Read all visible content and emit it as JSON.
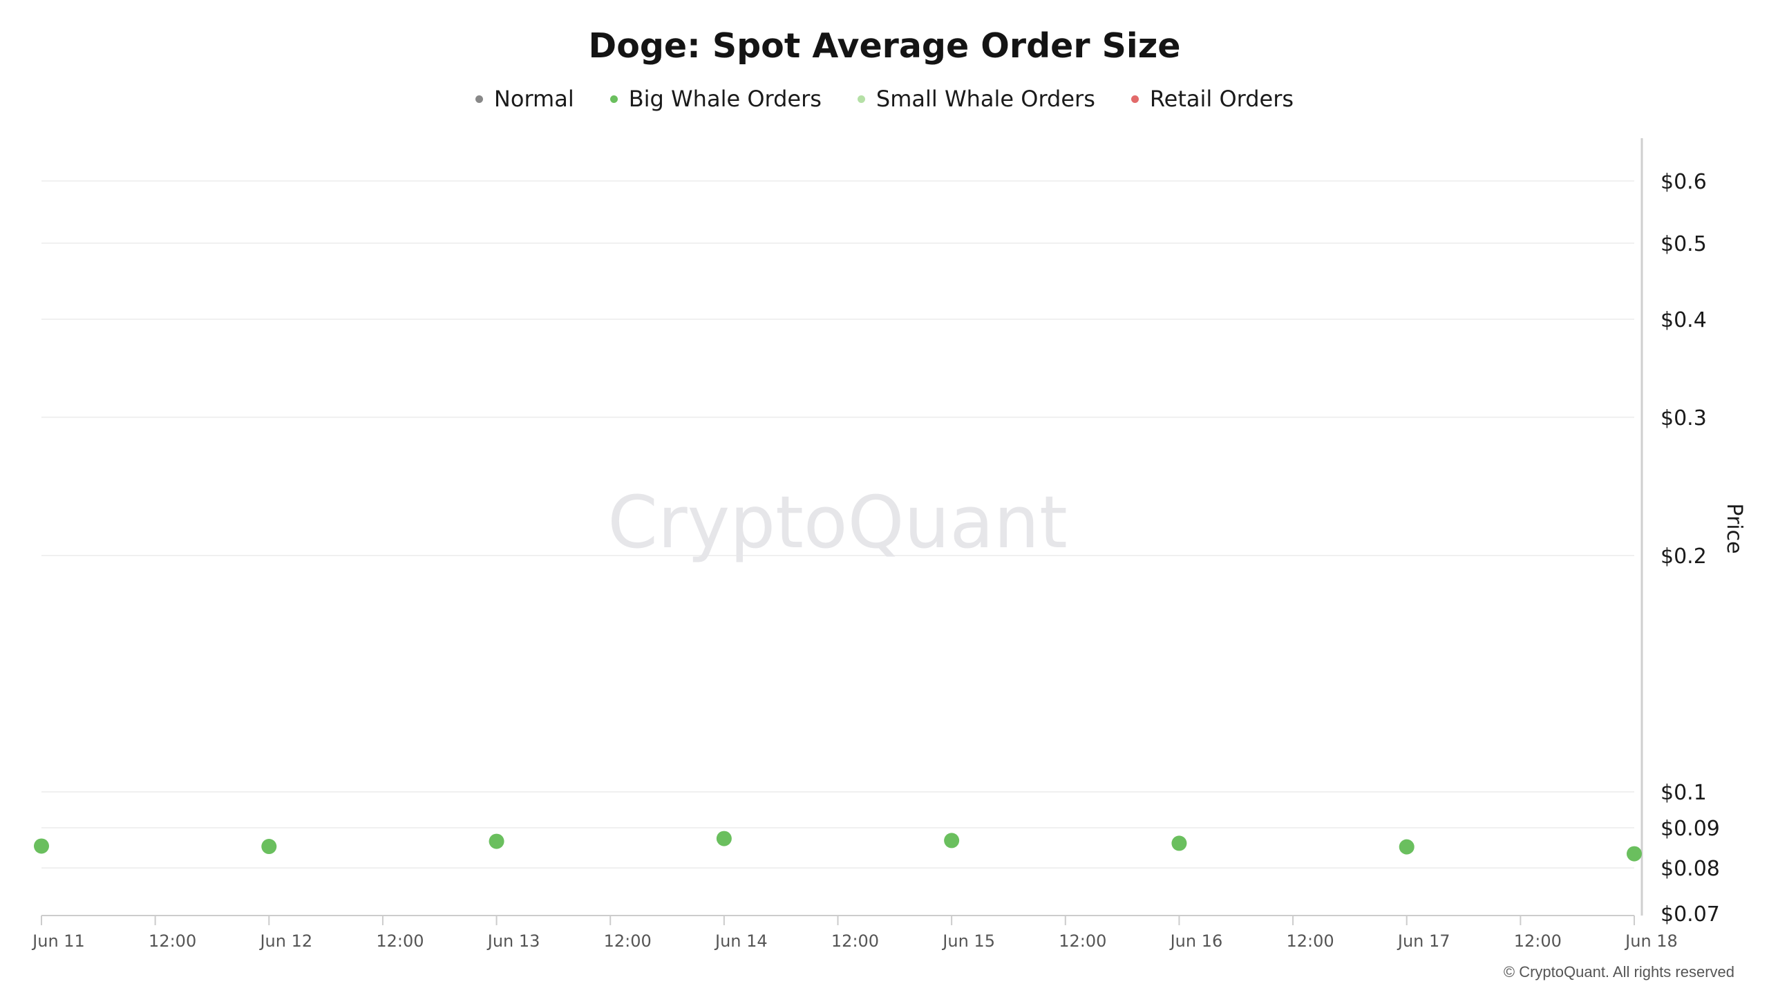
{
  "watermark": "CryptoQuant",
  "copyright": "© CryptoQuant. All rights reserved",
  "colors": {
    "normal": "#888888",
    "big_whale": "#6abf5e",
    "small_whale": "#b5e0a6",
    "retail": "#e26a6a"
  },
  "chart_data": {
    "type": "scatter",
    "title": "Doge: Spot Average Order Size",
    "legend": [
      {
        "name": "Normal",
        "color": "#888888"
      },
      {
        "name": "Big Whale Orders",
        "color": "#6abf5e"
      },
      {
        "name": "Small Whale Orders",
        "color": "#b5e0a6"
      },
      {
        "name": "Retail Orders",
        "color": "#e26a6a"
      }
    ],
    "legend_position": "top-center",
    "ylabel": "Price",
    "y_axis_position": "right",
    "y_scale": "log",
    "ylim": [
      0.07,
      0.65
    ],
    "y_ticks": [
      0.07,
      0.08,
      0.09,
      0.1,
      0.2,
      0.3,
      0.4,
      0.5,
      0.6
    ],
    "y_tick_labels": [
      "$0.07",
      "$0.08",
      "$0.09",
      "$0.1",
      "$0.2",
      "$0.3",
      "$0.4",
      "$0.5",
      "$0.6"
    ],
    "xlim": [
      "2023-06-11 00:00",
      "2023-06-18 00:00"
    ],
    "x_tick_labels": [
      "Jun 11",
      "12:00",
      "Jun 12",
      "12:00",
      "Jun 13",
      "12:00",
      "Jun 14",
      "12:00",
      "Jun 15",
      "12:00",
      "Jun 16",
      "12:00",
      "Jun 17",
      "12:00",
      "Jun 18"
    ],
    "grid": true,
    "series": [
      {
        "name": "Big Whale Orders",
        "color": "#6abf5e",
        "points": [
          {
            "x": "2023-06-11 00:00",
            "y": 0.0853
          },
          {
            "x": "2023-06-12 00:00",
            "y": 0.0852
          },
          {
            "x": "2023-06-13 00:00",
            "y": 0.0865
          },
          {
            "x": "2023-06-14 00:00",
            "y": 0.0872
          },
          {
            "x": "2023-06-15 00:00",
            "y": 0.0867
          },
          {
            "x": "2023-06-16 00:00",
            "y": 0.086
          },
          {
            "x": "2023-06-17 00:00",
            "y": 0.0851
          },
          {
            "x": "2023-06-18 00:00",
            "y": 0.0834
          }
        ]
      }
    ]
  }
}
